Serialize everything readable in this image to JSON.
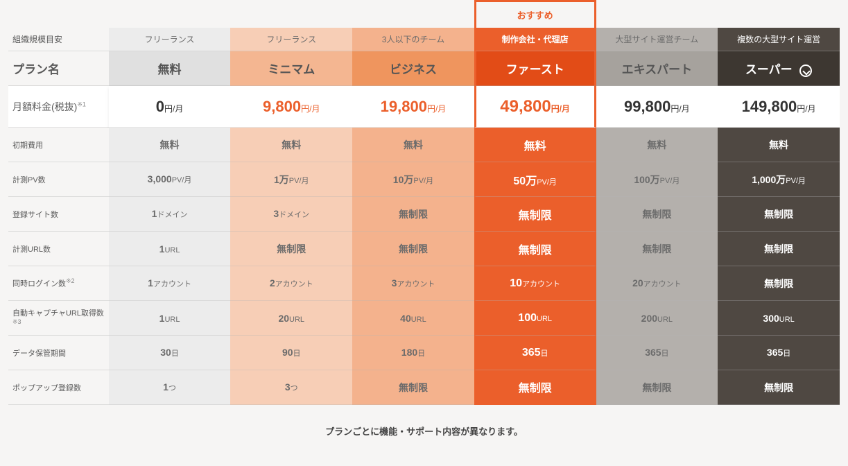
{
  "badge": "おすすめ",
  "row_labels": {
    "org": "組織規模目安",
    "plan": "プラン名",
    "price": "月額料金(税抜)",
    "price_note": "※1",
    "initial": "初期費用",
    "pv": "計測PV数",
    "sites": "登録サイト数",
    "urls": "計測URL数",
    "logins": "同時ログイン数",
    "logins_note": "※2",
    "capture": "自動キャプチャURL取得数",
    "capture_note": "※3",
    "retention": "データ保管期間",
    "popup": "ポップアップ登録数"
  },
  "plans": [
    {
      "org": "フリーランス",
      "name": "無料",
      "price_val": "0",
      "price_unit": "円/月",
      "initial": "無料",
      "pv_val": "3,000",
      "pv_unit": "PV/月",
      "sites_val": "1",
      "sites_unit": "ドメイン",
      "urls_val": "1",
      "urls_unit": "URL",
      "logins_val": "1",
      "logins_unit": "アカウント",
      "capture_val": "1",
      "capture_unit": "URL",
      "retention_val": "30",
      "retention_unit": "日",
      "popup_val": "1",
      "popup_unit": "つ"
    },
    {
      "org": "フリーランス",
      "name": "ミニマム",
      "price_val": "9,800",
      "price_unit": "円/月",
      "initial": "無料",
      "pv_val": "1万",
      "pv_unit": "PV/月",
      "sites_val": "3",
      "sites_unit": "ドメイン",
      "urls_val": "無制限",
      "urls_unit": "",
      "logins_val": "2",
      "logins_unit": "アカウント",
      "capture_val": "20",
      "capture_unit": "URL",
      "retention_val": "90",
      "retention_unit": "日",
      "popup_val": "3",
      "popup_unit": "つ"
    },
    {
      "org": "3人以下のチーム",
      "name": "ビジネス",
      "price_val": "19,800",
      "price_unit": "円/月",
      "initial": "無料",
      "pv_val": "10万",
      "pv_unit": "PV/月",
      "sites_val": "無制限",
      "sites_unit": "",
      "urls_val": "無制限",
      "urls_unit": "",
      "logins_val": "3",
      "logins_unit": "アカウント",
      "capture_val": "40",
      "capture_unit": "URL",
      "retention_val": "180",
      "retention_unit": "日",
      "popup_val": "無制限",
      "popup_unit": ""
    },
    {
      "org": "制作会社・代理店",
      "name": "ファースト",
      "price_val": "49,800",
      "price_unit": "円/月",
      "initial": "無料",
      "pv_val": "50万",
      "pv_unit": "PV/月",
      "sites_val": "無制限",
      "sites_unit": "",
      "urls_val": "無制限",
      "urls_unit": "",
      "logins_val": "10",
      "logins_unit": "アカウント",
      "capture_val": "100",
      "capture_unit": "URL",
      "retention_val": "365",
      "retention_unit": "日",
      "popup_val": "無制限",
      "popup_unit": ""
    },
    {
      "org": "大型サイト運営チーム",
      "name": "エキスパート",
      "price_val": "99,800",
      "price_unit": "円/月",
      "initial": "無料",
      "pv_val": "100万",
      "pv_unit": "PV/月",
      "sites_val": "無制限",
      "sites_unit": "",
      "urls_val": "無制限",
      "urls_unit": "",
      "logins_val": "20",
      "logins_unit": "アカウント",
      "capture_val": "200",
      "capture_unit": "URL",
      "retention_val": "365",
      "retention_unit": "日",
      "popup_val": "無制限",
      "popup_unit": ""
    },
    {
      "org": "複数の大型サイト運営",
      "name": "スーパー",
      "price_val": "149,800",
      "price_unit": "円/月",
      "initial": "無料",
      "pv_val": "1,000万",
      "pv_unit": "PV/月",
      "sites_val": "無制限",
      "sites_unit": "",
      "urls_val": "無制限",
      "urls_unit": "",
      "logins_val": "無制限",
      "logins_unit": "",
      "capture_val": "300",
      "capture_unit": "URL",
      "retention_val": "365",
      "retention_unit": "日",
      "popup_val": "無制限",
      "popup_unit": ""
    }
  ],
  "footer": "プランごとに機能・サポート内容が異なります。",
  "colors": {
    "accent": "#eb5f2b",
    "page_bg": "#f6f5f4",
    "col0": "#ececec",
    "col1": "#f7ceb6",
    "col2": "#f4b28d",
    "col3": "#eb5f2b",
    "col4": "#b4b0ac",
    "col5": "#4f4842"
  }
}
